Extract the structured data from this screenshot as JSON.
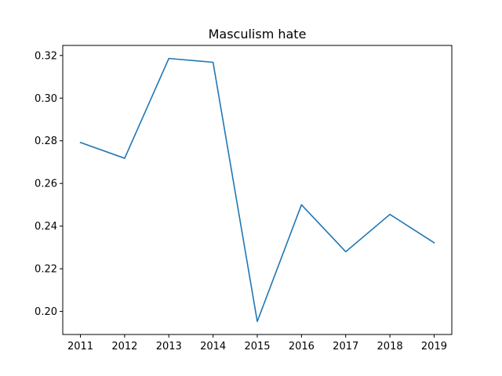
{
  "chart_data": {
    "type": "line",
    "title": "Masculism hate",
    "xlabel": "",
    "ylabel": "",
    "x": [
      2011,
      2012,
      2013,
      2014,
      2015,
      2016,
      2017,
      2018,
      2019
    ],
    "series": [
      {
        "values": [
          0.2792,
          0.2718,
          0.3186,
          0.3168,
          0.1953,
          0.25,
          0.228,
          0.2455,
          0.2322
        ],
        "color": "#1f77b4"
      }
    ],
    "xlim": [
      2010.6,
      2019.4
    ],
    "ylim": [
      0.1892,
      0.3247
    ],
    "xticks": [
      "2011",
      "2012",
      "2013",
      "2014",
      "2015",
      "2016",
      "2017",
      "2018",
      "2019"
    ],
    "yticks": [
      "0.20",
      "0.22",
      "0.24",
      "0.26",
      "0.28",
      "0.30",
      "0.32"
    ],
    "grid": false,
    "legend": "none"
  }
}
